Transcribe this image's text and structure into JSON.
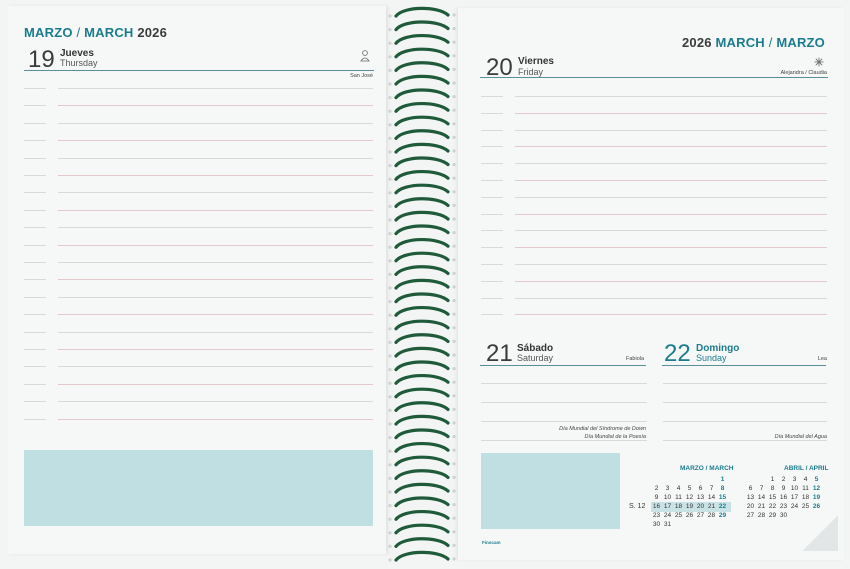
{
  "left_page": {
    "header": {
      "month_es": "MARZO",
      "sep": "/",
      "month_en": "MARCH",
      "year": "2026"
    },
    "day": {
      "number": "19",
      "name_es": "Jueves",
      "name_en": "Thursday",
      "saint": "San José",
      "icon": "person-icon"
    }
  },
  "right_page": {
    "header": {
      "year": "2026",
      "month_en": "MARCH",
      "sep": "/",
      "month_es": "MARZO"
    },
    "day20": {
      "number": "20",
      "name_es": "Viernes",
      "name_en": "Friday",
      "saint": "Alejandra / Claudia",
      "icon": "snowflake-icon"
    },
    "day21": {
      "number": "21",
      "name_es": "Sábado",
      "name_en": "Saturday",
      "saint": "Fabiola",
      "events": [
        "Día Mundial del Síndrome de Down",
        "Día Mundial de la Poesía"
      ]
    },
    "day22": {
      "number": "22",
      "name_es": "Domingo",
      "name_en": "Sunday",
      "saint": "Lea",
      "events": [
        "Día Mundial del Agua"
      ]
    },
    "brand": "Finocam",
    "mini_calendars": {
      "march": {
        "title_es": "MARZO",
        "title_en": "MARCH",
        "sep": "/",
        "rows": [
          [
            "",
            "",
            "",
            "",
            "",
            "",
            "1"
          ],
          [
            "2",
            "3",
            "4",
            "5",
            "6",
            "7",
            "8"
          ],
          [
            "9",
            "10",
            "11",
            "12",
            "13",
            "14",
            "15"
          ],
          [
            "16",
            "17",
            "18",
            "19",
            "20",
            "21",
            "22"
          ],
          [
            "23",
            "24",
            "25",
            "26",
            "27",
            "28",
            "29"
          ],
          [
            "30",
            "31",
            "",
            "",
            "",
            "",
            ""
          ]
        ],
        "week_label": "S. 12"
      },
      "april": {
        "title_es": "ABRIL",
        "title_en": "APRIL",
        "sep": "/",
        "rows": [
          [
            "",
            "",
            "1",
            "2",
            "3",
            "4",
            "5"
          ],
          [
            "6",
            "7",
            "8",
            "9",
            "10",
            "11",
            "12"
          ],
          [
            "13",
            "14",
            "15",
            "16",
            "17",
            "18",
            "19"
          ],
          [
            "20",
            "21",
            "22",
            "23",
            "24",
            "25",
            "26"
          ],
          [
            "27",
            "28",
            "29",
            "30",
            "",
            "",
            ""
          ]
        ]
      }
    }
  },
  "colors": {
    "accent": "#1b7c8d",
    "note_box": "#bfdfe3",
    "spiral": "#1f5a3a"
  }
}
